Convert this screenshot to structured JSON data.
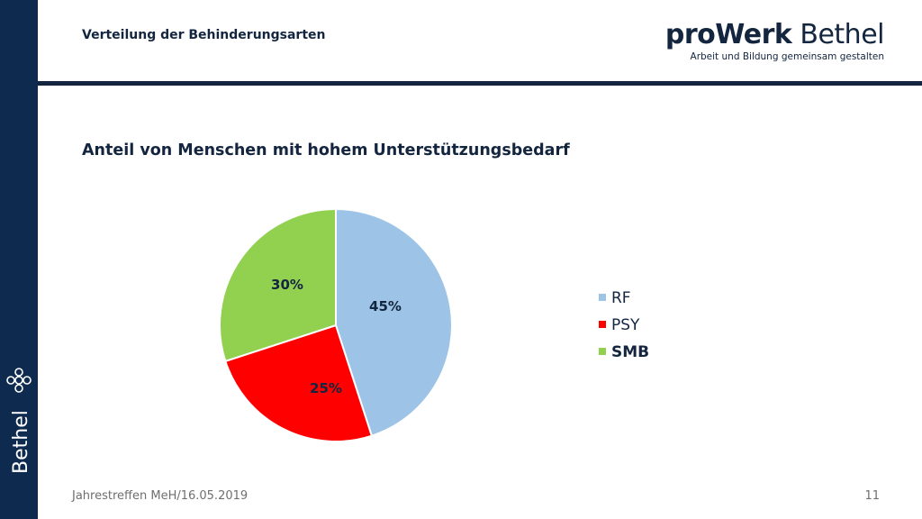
{
  "header": {
    "title": "Verteilung der Behinderungsarten",
    "brand_bold": "proWerk",
    "brand_light": " Bethel",
    "brand_tagline": "Arbeit und Bildung gemeinsam gestalten"
  },
  "sidebar": {
    "logo_text": "Bethel"
  },
  "footer": {
    "left": "Jahrestreffen MeH/16.05.2019",
    "page_number": "11"
  },
  "colors": {
    "navy": "#13253f",
    "rf": "#9dc3e6",
    "psy": "#ff0000",
    "smb": "#92d050"
  },
  "chart_data": {
    "type": "pie",
    "title": "Anteil von Menschen mit hohem Unterstützungsbedarf",
    "categories": [
      "RF",
      "PSY",
      "SMB"
    ],
    "values": [
      45,
      25,
      30
    ],
    "labels": [
      "45%",
      "25%",
      "30%"
    ],
    "colors": [
      "#9dc3e6",
      "#ff0000",
      "#92d050"
    ],
    "legend_position": "right"
  }
}
